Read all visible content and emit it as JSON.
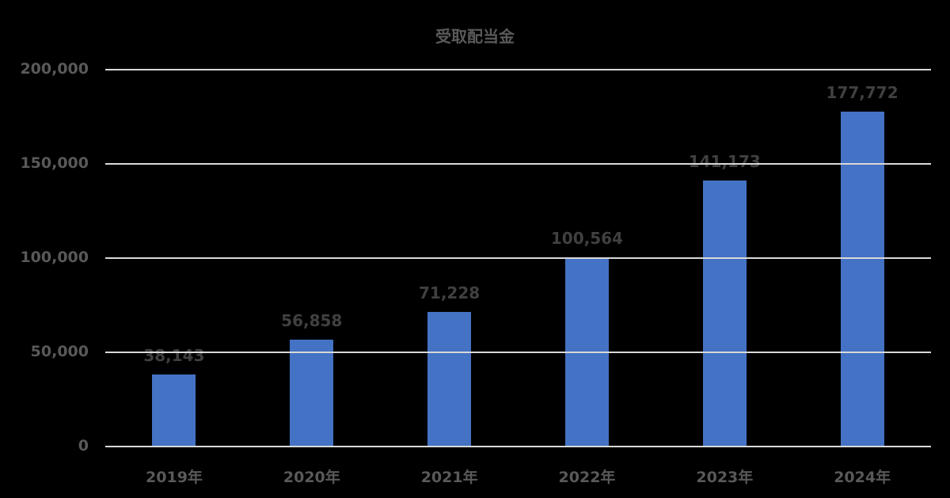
{
  "chart_data": {
    "type": "bar",
    "title": "受取配当金",
    "categories": [
      "2019年",
      "2020年",
      "2021年",
      "2022年",
      "2023年",
      "2024年"
    ],
    "values": [
      38143,
      56858,
      71228,
      100564,
      141173,
      177772
    ],
    "value_labels": [
      "38,143",
      "56,858",
      "71,228",
      "100,564",
      "141,173",
      "177,772"
    ],
    "xlabel": "",
    "ylabel": "",
    "ylim": [
      0,
      200000
    ],
    "yticks": [
      0,
      50000,
      100000,
      150000,
      200000
    ],
    "ytick_labels": [
      "0",
      "50,000",
      "100,000",
      "150,000",
      "200,000"
    ],
    "grid": true,
    "legend": "none",
    "colors": {
      "bar": "#4472c4",
      "background": "#000000",
      "grid": "#d9d9d9",
      "text": "#595959",
      "data_label": "#404040"
    }
  }
}
